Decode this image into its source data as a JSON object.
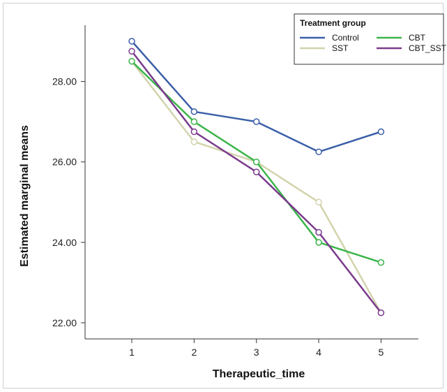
{
  "chart_data": {
    "type": "line",
    "title": "",
    "xlabel": "Therapeutic_time",
    "ylabel": "Estimated marginal means",
    "x": [
      1,
      2,
      3,
      4,
      5
    ],
    "x_tick_labels": [
      "1",
      "2",
      "3",
      "4",
      "5"
    ],
    "y_ticks": [
      22.0,
      24.0,
      26.0,
      28.0
    ],
    "y_tick_labels": [
      "22.00",
      "24.00",
      "26.00",
      "28.00"
    ],
    "xlim": [
      0.25,
      5.6
    ],
    "ylim": [
      21.6,
      29.4
    ],
    "grid": false,
    "legend": {
      "title": "Treatment group",
      "placement": "top-right"
    },
    "series": [
      {
        "name": "Control",
        "color": "#3a5fa8",
        "values": [
          29.0,
          27.25,
          27.0,
          26.25,
          26.75
        ]
      },
      {
        "name": "CBT",
        "color": "#3cb54a",
        "values": [
          28.5,
          27.0,
          26.0,
          24.0,
          23.5
        ]
      },
      {
        "name": "SST",
        "color": "#d3d3ad",
        "values": [
          28.5,
          26.5,
          26.0,
          25.0,
          22.25
        ]
      },
      {
        "name": "CBT_SST",
        "color": "#7b3a8c",
        "values": [
          28.75,
          26.75,
          25.75,
          24.25,
          22.25
        ]
      }
    ]
  }
}
